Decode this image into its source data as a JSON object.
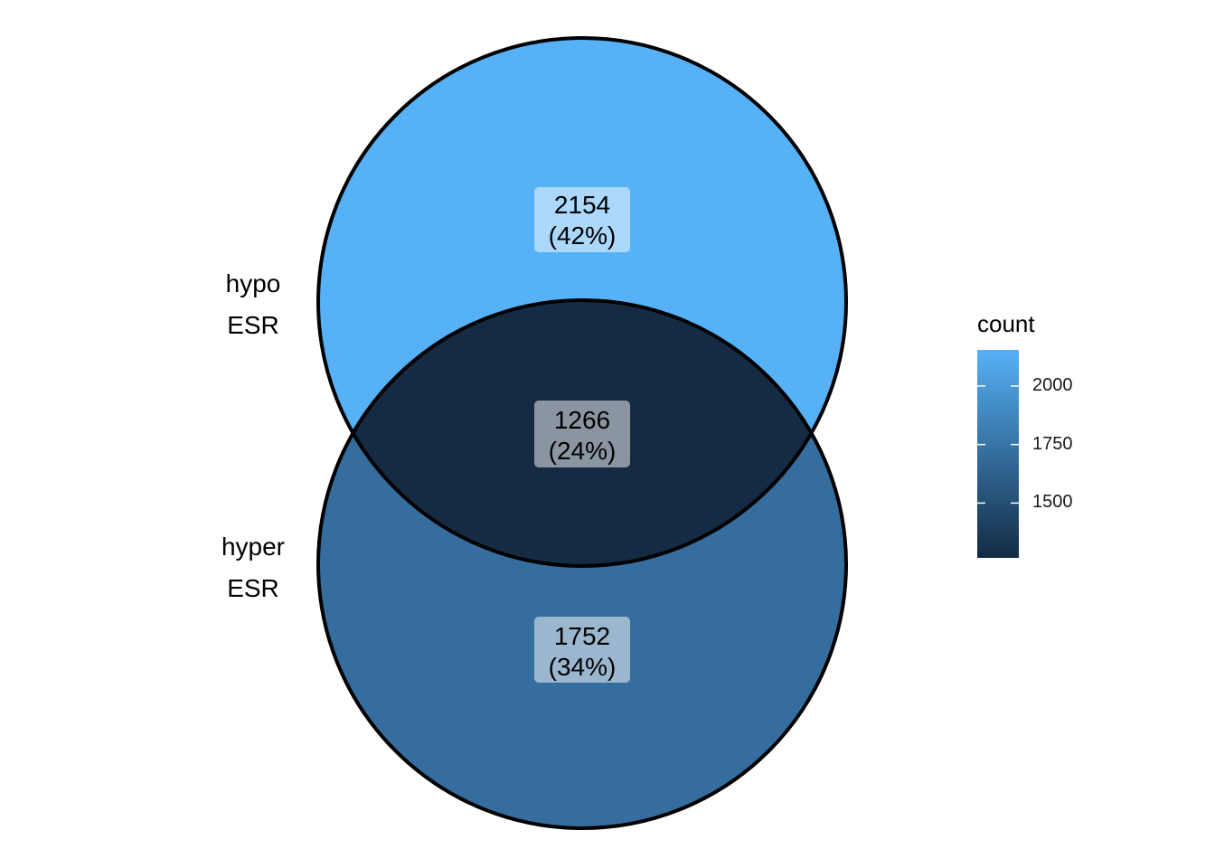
{
  "sets": [
    {
      "name_line1": "hypo",
      "name_line2": "ESR"
    },
    {
      "name_line1": "hyper",
      "name_line2": "ESR"
    }
  ],
  "regions": [
    {
      "id": "hypo_only",
      "count": "2154",
      "percent": "(42%)",
      "value": 2154,
      "color": "#56B1F7"
    },
    {
      "id": "overlap",
      "count": "1266",
      "percent": "(24%)",
      "value": 1266,
      "color": "#152B43"
    },
    {
      "id": "hyper_only",
      "count": "1752",
      "percent": "(34%)",
      "value": 1752,
      "color": "#366D9F"
    }
  ],
  "legend": {
    "title": "count",
    "ticks": [
      "2000",
      "1750",
      "1500"
    ],
    "tick_values": [
      2000,
      1750,
      1500
    ],
    "range": [
      1266,
      2154
    ],
    "color_low": "#132B43",
    "color_high": "#56B1F7"
  }
}
